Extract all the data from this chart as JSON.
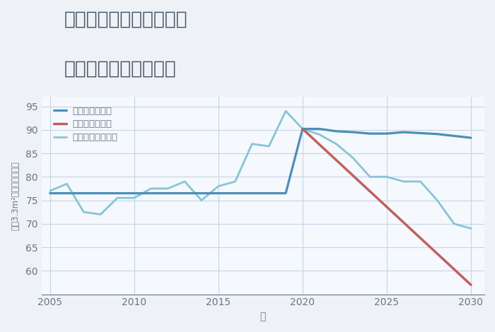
{
  "title_line1": "千葉県四街道市和良比の",
  "title_line2": "中古戸建ての価格推移",
  "xlabel": "年",
  "ylabel": "坪（3.3m²）単価（万円）",
  "fig_background_color": "#eef2f6",
  "plot_background_color": "#f5f8fc",
  "grid_color": "#c5d5e5",
  "title_color": "#445566",
  "axis_color": "#667788",
  "good_scenario": {
    "years": [
      2005,
      2006,
      2007,
      2008,
      2009,
      2010,
      2011,
      2012,
      2013,
      2014,
      2015,
      2016,
      2017,
      2018,
      2019,
      2020,
      2021,
      2022,
      2023,
      2024,
      2025,
      2026,
      2027,
      2028,
      2029,
      2030
    ],
    "values": [
      76.5,
      76.5,
      76.5,
      76.5,
      76.5,
      76.5,
      76.5,
      76.5,
      76.5,
      76.5,
      76.5,
      76.5,
      76.5,
      76.5,
      76.5,
      90.2,
      90.2,
      89.7,
      89.5,
      89.2,
      89.2,
      89.5,
      89.3,
      89.1,
      88.7,
      88.3
    ],
    "color": "#4a90b8",
    "label": "グッドシナリオ",
    "linewidth": 2.3
  },
  "bad_scenario": {
    "years": [
      2020,
      2030
    ],
    "values": [
      90.2,
      57.0
    ],
    "color": "#c06060",
    "label": "バッドシナリオ",
    "linewidth": 2.5
  },
  "normal_scenario": {
    "years": [
      2005,
      2006,
      2007,
      2008,
      2009,
      2010,
      2011,
      2012,
      2013,
      2014,
      2015,
      2016,
      2017,
      2018,
      2019,
      2020,
      2021,
      2022,
      2023,
      2024,
      2025,
      2026,
      2027,
      2028,
      2029,
      2030
    ],
    "values": [
      77.0,
      78.5,
      72.5,
      72.0,
      75.5,
      75.5,
      77.5,
      77.5,
      79.0,
      75.0,
      78.0,
      79.0,
      87.0,
      86.5,
      94.0,
      90.2,
      89.0,
      87.0,
      84.0,
      80.0,
      80.0,
      79.0,
      79.0,
      75.0,
      70.0,
      69.0
    ],
    "color": "#85c5d8",
    "label": "ノーマルシナリオ",
    "linewidth": 2.0
  },
  "xlim": [
    2004.5,
    2030.8
  ],
  "ylim": [
    55,
    97
  ],
  "yticks": [
    60,
    65,
    70,
    75,
    80,
    85,
    90,
    95
  ],
  "xticks": [
    2005,
    2010,
    2015,
    2020,
    2025,
    2030
  ],
  "title_fontsize": 19,
  "tick_fontsize": 10,
  "label_fontsize": 10
}
